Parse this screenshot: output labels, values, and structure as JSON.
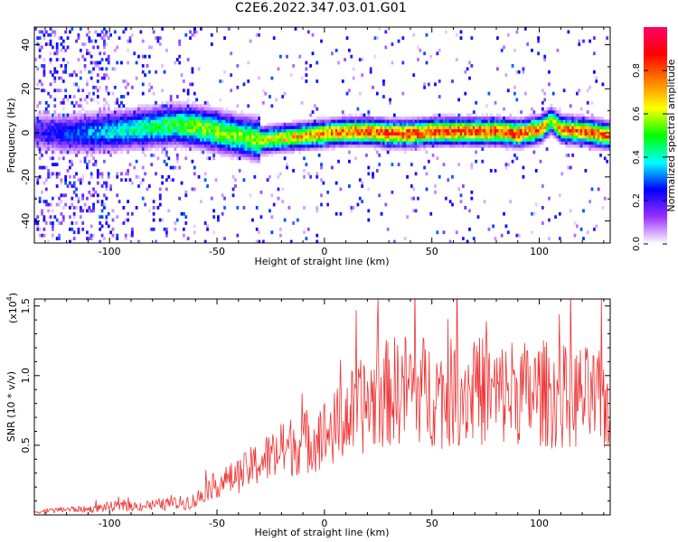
{
  "title": "C2E6.2022.347.03.01.G01",
  "chart_data": [
    {
      "type": "heatmap",
      "xlabel": "Height of straight line (km)",
      "ylabel": "Frequency (Hz)",
      "xlim": [
        -135,
        133
      ],
      "ylim": [
        -50,
        48
      ],
      "x_ticks": [
        -100,
        -50,
        0,
        50,
        100
      ],
      "y_ticks": [
        -40,
        -20,
        0,
        20,
        40
      ],
      "colorbar": {
        "label": "Normalized spectral amplitude",
        "range": [
          0,
          1
        ],
        "ticks": [
          0.0,
          0.2,
          0.4,
          0.6,
          0.8
        ],
        "colormap": [
          "#ffffff",
          "#9b30ff",
          "#0000ff",
          "#00ffff",
          "#00ff00",
          "#ffff00",
          "#ff8000",
          "#ff0000",
          "#ff0066"
        ]
      },
      "ridge": {
        "x": [
          -135,
          -120,
          -100,
          -80,
          -70,
          -60,
          -50,
          -40,
          -30,
          -20,
          -10,
          0,
          10,
          20,
          30,
          40,
          50,
          60,
          70,
          80,
          90,
          100,
          105,
          110,
          120,
          133
        ],
        "frequency": [
          0,
          -1,
          0,
          2,
          3,
          2,
          0,
          -2,
          -4,
          -3,
          -2,
          -1,
          0,
          0,
          -1,
          -1,
          0,
          0,
          0,
          0,
          -1,
          1,
          5,
          1,
          0,
          -2
        ],
        "peak_amplitude": [
          0.2,
          0.3,
          0.4,
          0.5,
          0.55,
          0.6,
          0.6,
          0.6,
          0.65,
          0.7,
          0.75,
          0.8,
          0.85,
          0.9,
          0.9,
          0.9,
          0.9,
          0.9,
          0.9,
          0.9,
          0.9,
          0.85,
          0.6,
          0.8,
          0.85,
          0.85
        ]
      }
    },
    {
      "type": "line",
      "xlabel": "Height of straight line (km)",
      "ylabel": "SNR (10 * v/v)",
      "y_multiplier": "(x10",
      "y_multiplier_exp": "4",
      "y_multiplier_close": ")",
      "xlim": [
        -135,
        133
      ],
      "ylim": [
        0,
        1.55
      ],
      "x_ticks": [
        -100,
        -50,
        0,
        50,
        100
      ],
      "y_ticks": [
        0.5,
        1.0,
        1.5
      ],
      "color": "#ee3333",
      "series": [
        {
          "x": [
            -135,
            -120,
            -110,
            -100,
            -90,
            -80,
            -70,
            -60,
            -55,
            -50,
            -45,
            -40,
            -35,
            -30,
            -25,
            -20,
            -15,
            -10,
            -5,
            0,
            5,
            10,
            15,
            20,
            25,
            30,
            35,
            40,
            45,
            50,
            55,
            60,
            65,
            70,
            75,
            80,
            85,
            90,
            95,
            100,
            105,
            110,
            115,
            120,
            125,
            133
          ],
          "y": [
            0.02,
            0.04,
            0.04,
            0.06,
            0.06,
            0.07,
            0.08,
            0.1,
            0.18,
            0.22,
            0.25,
            0.28,
            0.33,
            0.38,
            0.42,
            0.45,
            0.5,
            0.52,
            0.55,
            0.58,
            0.62,
            0.7,
            0.75,
            0.8,
            0.85,
            0.88,
            0.9,
            0.92,
            0.9,
            0.88,
            0.85,
            0.88,
            0.9,
            0.88,
            0.9,
            0.85,
            0.88,
            0.9,
            0.85,
            0.88,
            0.86,
            0.85,
            0.84,
            0.85,
            0.82,
            0.8
          ]
        }
      ]
    }
  ]
}
